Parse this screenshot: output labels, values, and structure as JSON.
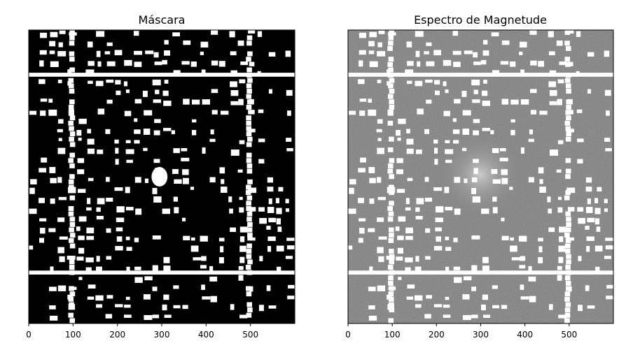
{
  "chart_data": [
    {
      "type": "heatmap",
      "title": "Máscara",
      "colormap": "gray",
      "background_value": "black",
      "foreground_value": "white",
      "xlim": [
        0,
        600
      ],
      "xticks": [
        0,
        100,
        200,
        300,
        400,
        500
      ],
      "yticks": [],
      "grid": false,
      "features": {
        "vertical_bands_x": [
          95,
          495
        ],
        "horizontal_bands_y": [
          100,
          545
        ],
        "center_blob": [
          295,
          330
        ]
      }
    },
    {
      "type": "heatmap",
      "title": "Espectro de Magnetude",
      "colormap": "gray",
      "background_value": "gray",
      "foreground_value": "white",
      "xlim": [
        0,
        600
      ],
      "xticks": [
        0,
        100,
        200,
        300,
        400,
        500
      ],
      "yticks": [],
      "grid": false,
      "features": {
        "vertical_bands_x": [
          95,
          495
        ],
        "horizontal_bands_y": [
          100,
          545
        ],
        "center_glow": [
          295,
          330
        ]
      }
    }
  ]
}
